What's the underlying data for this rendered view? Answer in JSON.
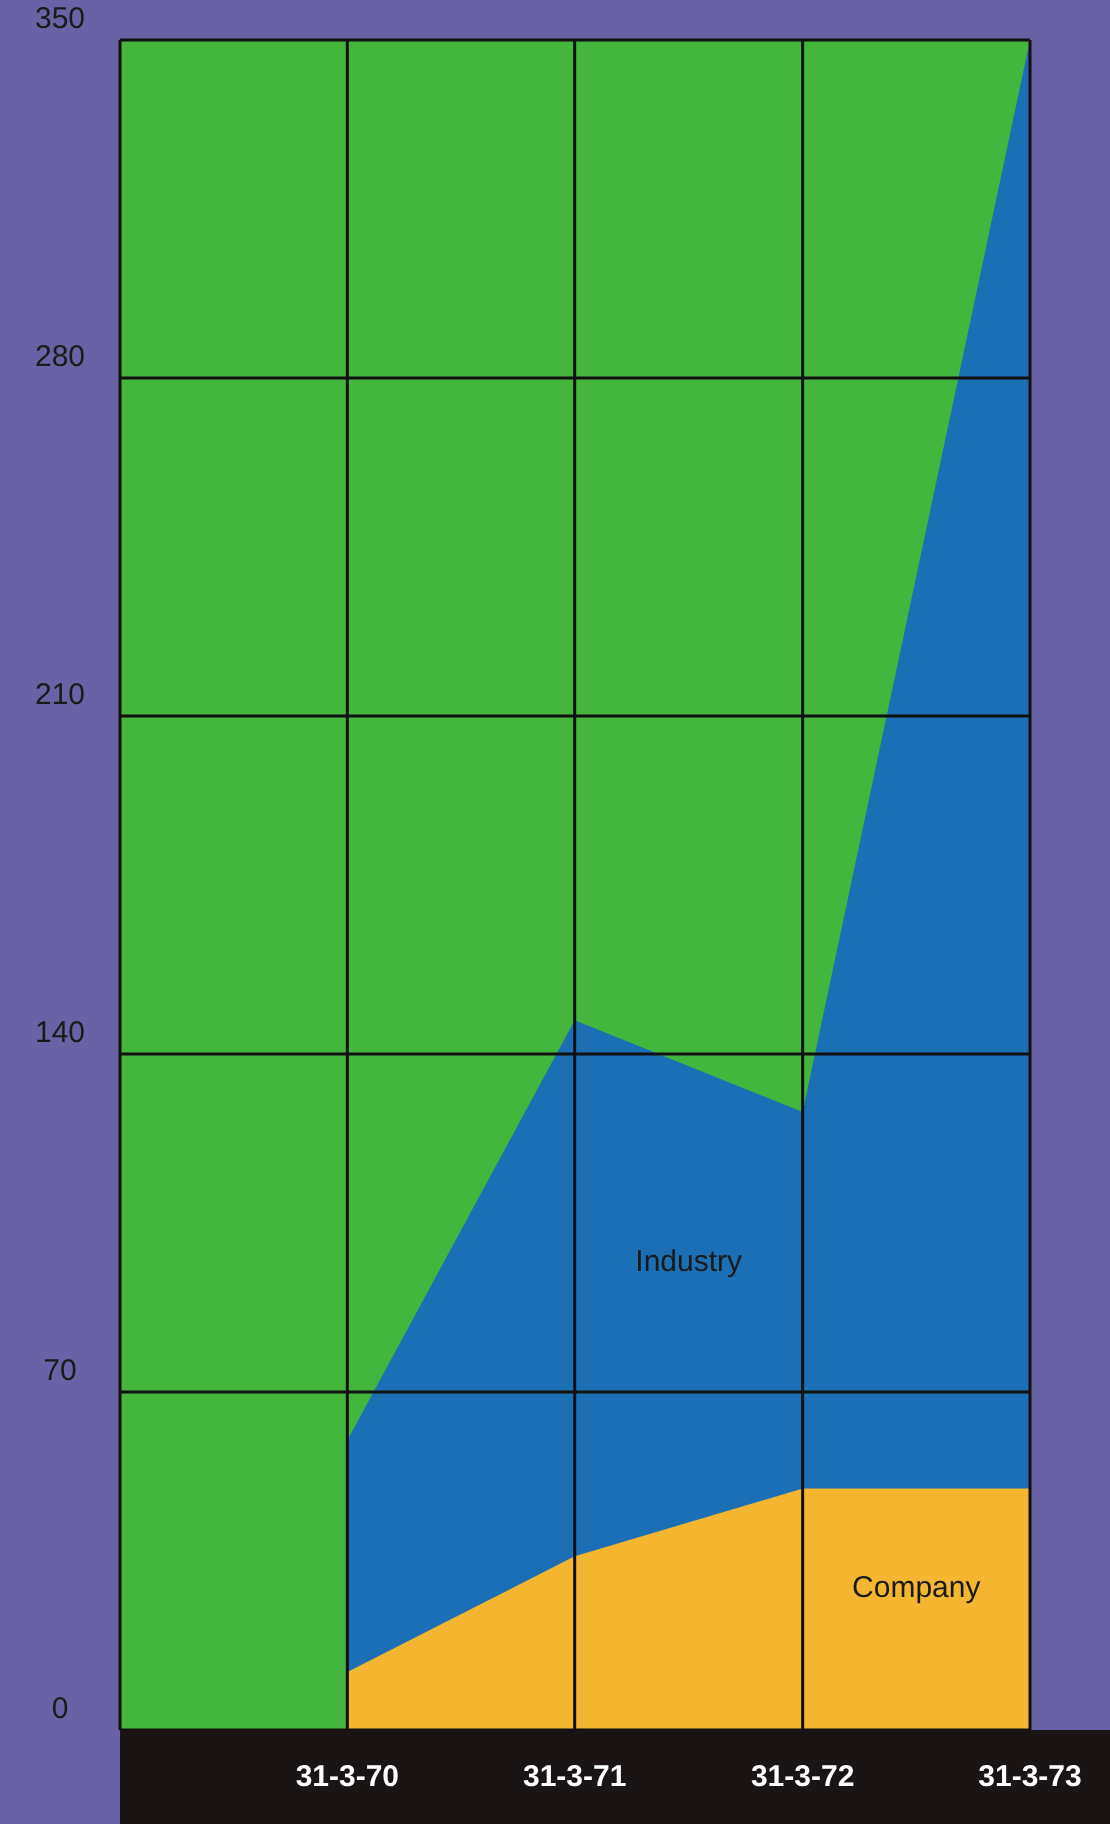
{
  "chart_data": {
    "type": "area",
    "x": [
      "1970-03-31",
      "1971-03-31",
      "1972-03-31",
      "1973-03-31"
    ],
    "series": [
      {
        "name": "Industry",
        "color": "#1c6fb5",
        "values": [
          60,
          147,
          128,
          350
        ]
      },
      {
        "name": "Company",
        "color": "#f4b531",
        "values": [
          12,
          36,
          50,
          50
        ]
      }
    ],
    "xlim": [
      "1969-03-31",
      "1973-03-31"
    ],
    "xticks": [
      {
        "value": "1970-03-31",
        "label": "31-3-70"
      },
      {
        "value": "1971-03-31",
        "label": "31-3-71"
      },
      {
        "value": "1972-03-31",
        "label": "31-3-72"
      },
      {
        "value": "1973-03-31",
        "label": "31-3-73"
      }
    ],
    "ylim": [
      0,
      350
    ],
    "yticks": [
      0,
      70,
      140,
      210,
      280,
      350
    ],
    "grid": true
  }
}
